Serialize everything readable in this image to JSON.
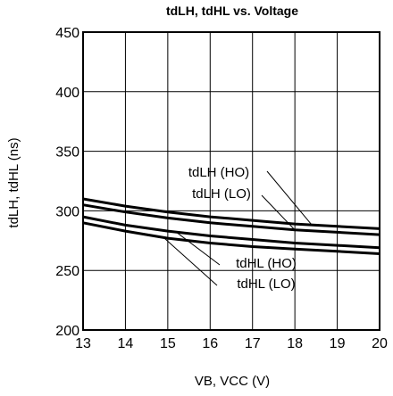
{
  "chart_data": {
    "type": "line",
    "title": "tdLH, tdHL vs. Voltage",
    "xlabel": "VB, VCC (V)",
    "ylabel": "tdLH, tdHL (ns)",
    "xlim": [
      13,
      20
    ],
    "ylim": [
      200,
      450
    ],
    "x_ticks": [
      "13",
      "14",
      "15",
      "16",
      "17",
      "18",
      "19",
      "20"
    ],
    "y_ticks": [
      "200",
      "250",
      "300",
      "350",
      "400",
      "450"
    ],
    "grid": true,
    "x": [
      13,
      14,
      15,
      16,
      17,
      18,
      19,
      20
    ],
    "series": [
      {
        "name": "tdLH (HO)",
        "values": [
          310,
          304,
          299,
          295,
          292,
          289,
          287,
          285
        ]
      },
      {
        "name": "tdLH (LO)",
        "values": [
          305,
          299,
          294,
          290,
          287,
          284,
          282,
          280
        ]
      },
      {
        "name": "tdHL (HO)",
        "values": [
          295,
          288,
          283,
          279,
          276,
          273,
          271,
          269
        ]
      },
      {
        "name": "tdHL (LO)",
        "values": [
          290,
          283,
          277,
          273,
          270,
          268,
          266,
          264
        ]
      }
    ]
  }
}
